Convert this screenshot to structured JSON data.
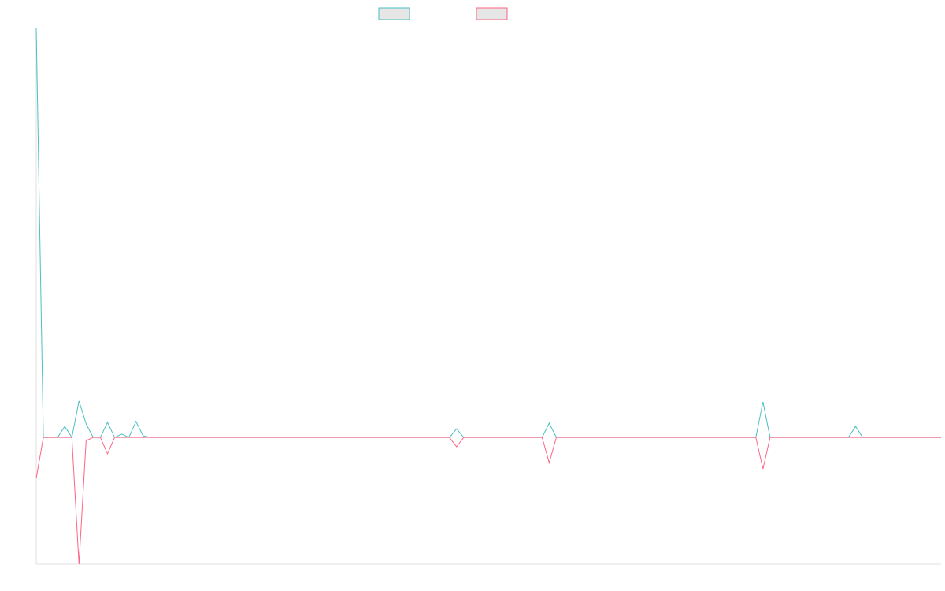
{
  "chart_data": {
    "type": "line",
    "series": [
      {
        "color": "#4bc0c0",
        "values": [
          100,
          0,
          0,
          0,
          2.7,
          0,
          8.9,
          3.3,
          0,
          0,
          3.7,
          0,
          0.8,
          0,
          3.9,
          0.4,
          0,
          0,
          0,
          0,
          0,
          0,
          0,
          0,
          0,
          0,
          0,
          0,
          0,
          0,
          0,
          0,
          0,
          0,
          0,
          0,
          0,
          0,
          0,
          0,
          0,
          0,
          0,
          0,
          0,
          0,
          0,
          0,
          0,
          0,
          0,
          0,
          0,
          0,
          0,
          0,
          0,
          0,
          0,
          2.1,
          0,
          0,
          0,
          0,
          0,
          0,
          0,
          0,
          0,
          0,
          0,
          0,
          3.5,
          0,
          0,
          0,
          0,
          0,
          0,
          0,
          0,
          0,
          0,
          0,
          0,
          0,
          0,
          0,
          0,
          0,
          0,
          0,
          0,
          0,
          0,
          0,
          0,
          0,
          0,
          0,
          0,
          0,
          8.7,
          0,
          0,
          0,
          0,
          0,
          0,
          0,
          0,
          0,
          0,
          0,
          0,
          2.7,
          0,
          0,
          0,
          0,
          0,
          0,
          0,
          0,
          0,
          0,
          0,
          0
        ]
      },
      {
        "color": "#ff6384",
        "values": [
          -10,
          0,
          0,
          0,
          0,
          0,
          -31,
          -0.8,
          0,
          0,
          -4,
          0,
          0,
          0,
          0,
          0,
          0,
          0,
          0,
          0,
          0,
          0,
          0,
          0,
          0,
          0,
          0,
          0,
          0,
          0,
          0,
          0,
          0,
          0,
          0,
          0,
          0,
          0,
          0,
          0,
          0,
          0,
          0,
          0,
          0,
          0,
          0,
          0,
          0,
          0,
          0,
          0,
          0,
          0,
          0,
          0,
          0,
          0,
          0,
          -2.3,
          0,
          0,
          0,
          0,
          0,
          0,
          0,
          0,
          0,
          0,
          0,
          0,
          -6.2,
          0,
          0,
          0,
          0,
          0,
          0,
          0,
          0,
          0,
          0,
          0,
          0,
          0,
          0,
          0,
          0,
          0,
          0,
          0,
          0,
          0,
          0,
          0,
          0,
          0,
          0,
          0,
          0,
          0,
          -7.7,
          0,
          0,
          0,
          0,
          0,
          0,
          0,
          0,
          0,
          0,
          0,
          0,
          0,
          0,
          0,
          0,
          0,
          0,
          0,
          0,
          0,
          0,
          0,
          0,
          0
        ]
      }
    ],
    "ylim": [
      -31,
      100
    ]
  }
}
